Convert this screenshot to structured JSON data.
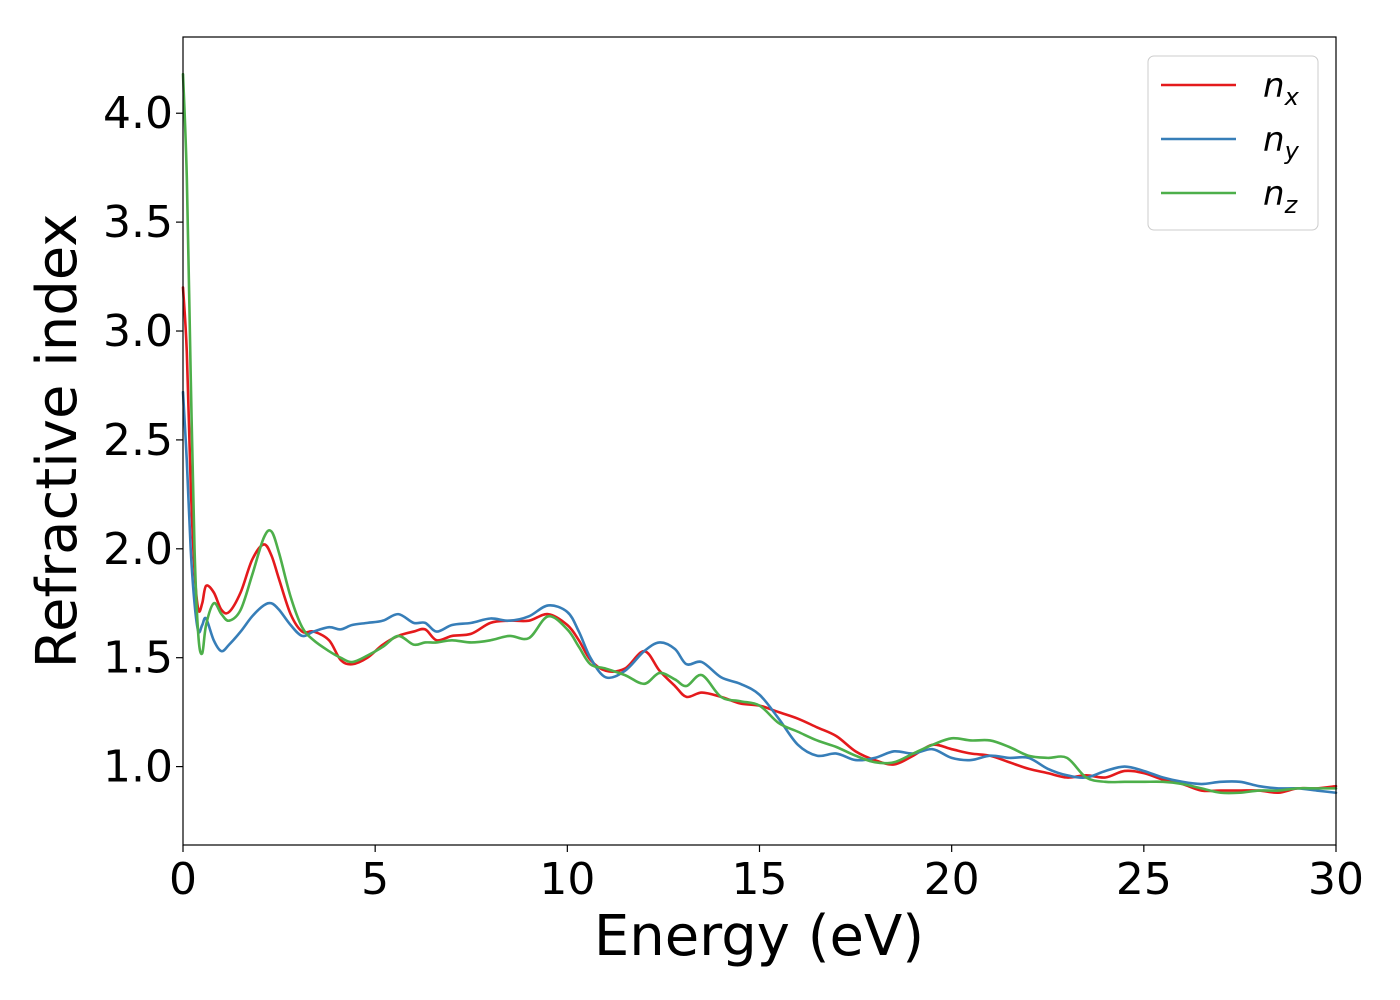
{
  "chart_data": {
    "type": "line",
    "title": "",
    "xlabel": "Energy (eV)",
    "ylabel": "Refractive index",
    "xlim": [
      0,
      30
    ],
    "ylim": [
      0.64,
      4.35
    ],
    "xticks": [
      0,
      5,
      10,
      15,
      20,
      25,
      30
    ],
    "xtick_labels": [
      "0",
      "5",
      "10",
      "15",
      "20",
      "25",
      "30"
    ],
    "yticks": [
      1.0,
      1.5,
      2.0,
      2.5,
      3.0,
      3.5,
      4.0
    ],
    "ytick_labels": [
      "1.0",
      "1.5",
      "2.0",
      "2.5",
      "3.0",
      "3.5",
      "4.0"
    ],
    "grid": false,
    "legend_position": "top-right",
    "series": [
      {
        "name": "n_x",
        "label_base": "n",
        "label_sub": "x",
        "color": "#e41a1c",
        "x": [
          0,
          0.1,
          0.2,
          0.3,
          0.4,
          0.5,
          0.6,
          0.8,
          1.0,
          1.2,
          1.5,
          1.8,
          2.1,
          2.3,
          2.5,
          2.8,
          3.1,
          3.4,
          3.8,
          4.1,
          4.4,
          4.8,
          5.2,
          5.6,
          6.0,
          6.3,
          6.6,
          7.0,
          7.5,
          8.0,
          8.5,
          9.0,
          9.5,
          10.0,
          10.3,
          10.6,
          11.0,
          11.5,
          12.0,
          12.4,
          12.8,
          13.1,
          13.5,
          14.0,
          14.5,
          15.0,
          15.5,
          16.0,
          16.5,
          17.0,
          17.5,
          18.0,
          18.5,
          19.0,
          19.5,
          20.0,
          20.5,
          21.0,
          21.5,
          22.0,
          22.5,
          23.0,
          23.5,
          24.0,
          24.5,
          25.0,
          25.5,
          26.0,
          26.5,
          27.0,
          27.5,
          28.0,
          28.5,
          29.0,
          29.5,
          30.0
        ],
        "values": [
          3.2,
          2.9,
          2.3,
          1.9,
          1.72,
          1.75,
          1.83,
          1.8,
          1.72,
          1.71,
          1.8,
          1.95,
          2.02,
          1.97,
          1.86,
          1.7,
          1.62,
          1.62,
          1.58,
          1.49,
          1.47,
          1.5,
          1.56,
          1.6,
          1.62,
          1.63,
          1.58,
          1.6,
          1.61,
          1.66,
          1.67,
          1.67,
          1.7,
          1.65,
          1.58,
          1.49,
          1.44,
          1.45,
          1.53,
          1.44,
          1.37,
          1.32,
          1.34,
          1.32,
          1.29,
          1.28,
          1.25,
          1.22,
          1.18,
          1.14,
          1.07,
          1.03,
          1.01,
          1.05,
          1.1,
          1.08,
          1.06,
          1.05,
          1.02,
          0.99,
          0.97,
          0.95,
          0.96,
          0.95,
          0.98,
          0.97,
          0.94,
          0.92,
          0.89,
          0.89,
          0.89,
          0.89,
          0.88,
          0.9,
          0.9,
          0.91
        ]
      },
      {
        "name": "n_y",
        "label_base": "n",
        "label_sub": "y",
        "color": "#377eb8",
        "x": [
          0,
          0.1,
          0.2,
          0.3,
          0.4,
          0.5,
          0.6,
          0.8,
          1.0,
          1.2,
          1.5,
          1.8,
          2.1,
          2.3,
          2.5,
          2.8,
          3.1,
          3.4,
          3.8,
          4.1,
          4.4,
          4.8,
          5.2,
          5.6,
          6.0,
          6.3,
          6.6,
          7.0,
          7.5,
          8.0,
          8.5,
          9.0,
          9.5,
          10.0,
          10.3,
          10.6,
          11.0,
          11.5,
          12.0,
          12.4,
          12.8,
          13.1,
          13.5,
          14.0,
          14.5,
          15.0,
          15.5,
          16.0,
          16.5,
          17.0,
          17.5,
          18.0,
          18.5,
          19.0,
          19.5,
          20.0,
          20.5,
          21.0,
          21.5,
          22.0,
          22.5,
          23.0,
          23.5,
          24.0,
          24.5,
          25.0,
          25.5,
          26.0,
          26.5,
          27.0,
          27.5,
          28.0,
          28.5,
          29.0,
          29.5,
          30.0
        ],
        "values": [
          2.72,
          2.4,
          2.0,
          1.75,
          1.62,
          1.65,
          1.68,
          1.58,
          1.53,
          1.56,
          1.62,
          1.69,
          1.74,
          1.75,
          1.72,
          1.65,
          1.6,
          1.62,
          1.64,
          1.63,
          1.65,
          1.66,
          1.67,
          1.7,
          1.66,
          1.66,
          1.62,
          1.65,
          1.66,
          1.68,
          1.67,
          1.69,
          1.74,
          1.71,
          1.62,
          1.5,
          1.41,
          1.44,
          1.53,
          1.57,
          1.54,
          1.47,
          1.48,
          1.41,
          1.38,
          1.33,
          1.22,
          1.1,
          1.05,
          1.06,
          1.03,
          1.04,
          1.07,
          1.06,
          1.08,
          1.04,
          1.03,
          1.05,
          1.04,
          1.04,
          0.99,
          0.96,
          0.95,
          0.98,
          1.0,
          0.98,
          0.95,
          0.93,
          0.92,
          0.93,
          0.93,
          0.91,
          0.9,
          0.9,
          0.89,
          0.88
        ]
      },
      {
        "name": "n_z",
        "label_base": "n",
        "label_sub": "z",
        "color": "#4daf4a",
        "x": [
          0,
          0.1,
          0.2,
          0.3,
          0.4,
          0.5,
          0.6,
          0.8,
          1.0,
          1.2,
          1.5,
          1.8,
          2.1,
          2.3,
          2.5,
          2.8,
          3.1,
          3.4,
          3.8,
          4.1,
          4.4,
          4.8,
          5.2,
          5.6,
          6.0,
          6.3,
          6.6,
          7.0,
          7.5,
          8.0,
          8.5,
          9.0,
          9.5,
          10.0,
          10.3,
          10.6,
          11.0,
          11.5,
          12.0,
          12.4,
          12.8,
          13.1,
          13.5,
          14.0,
          14.5,
          15.0,
          15.5,
          16.0,
          16.5,
          17.0,
          17.5,
          18.0,
          18.5,
          19.0,
          19.5,
          20.0,
          20.5,
          21.0,
          21.5,
          22.0,
          22.5,
          23.0,
          23.5,
          24.0,
          24.5,
          25.0,
          25.5,
          26.0,
          26.5,
          27.0,
          27.5,
          28.0,
          28.5,
          29.0,
          29.5,
          30.0
        ],
        "values": [
          4.18,
          3.7,
          2.8,
          2.0,
          1.6,
          1.52,
          1.65,
          1.75,
          1.7,
          1.67,
          1.72,
          1.88,
          2.05,
          2.08,
          1.98,
          1.78,
          1.64,
          1.58,
          1.53,
          1.5,
          1.48,
          1.51,
          1.55,
          1.6,
          1.56,
          1.57,
          1.57,
          1.58,
          1.57,
          1.58,
          1.6,
          1.59,
          1.69,
          1.63,
          1.55,
          1.47,
          1.45,
          1.42,
          1.38,
          1.43,
          1.4,
          1.37,
          1.42,
          1.32,
          1.3,
          1.28,
          1.2,
          1.16,
          1.12,
          1.09,
          1.05,
          1.02,
          1.02,
          1.06,
          1.1,
          1.13,
          1.12,
          1.12,
          1.09,
          1.05,
          1.04,
          1.04,
          0.95,
          0.93,
          0.93,
          0.93,
          0.93,
          0.92,
          0.9,
          0.88,
          0.88,
          0.89,
          0.89,
          0.9,
          0.9,
          0.9
        ]
      }
    ]
  }
}
